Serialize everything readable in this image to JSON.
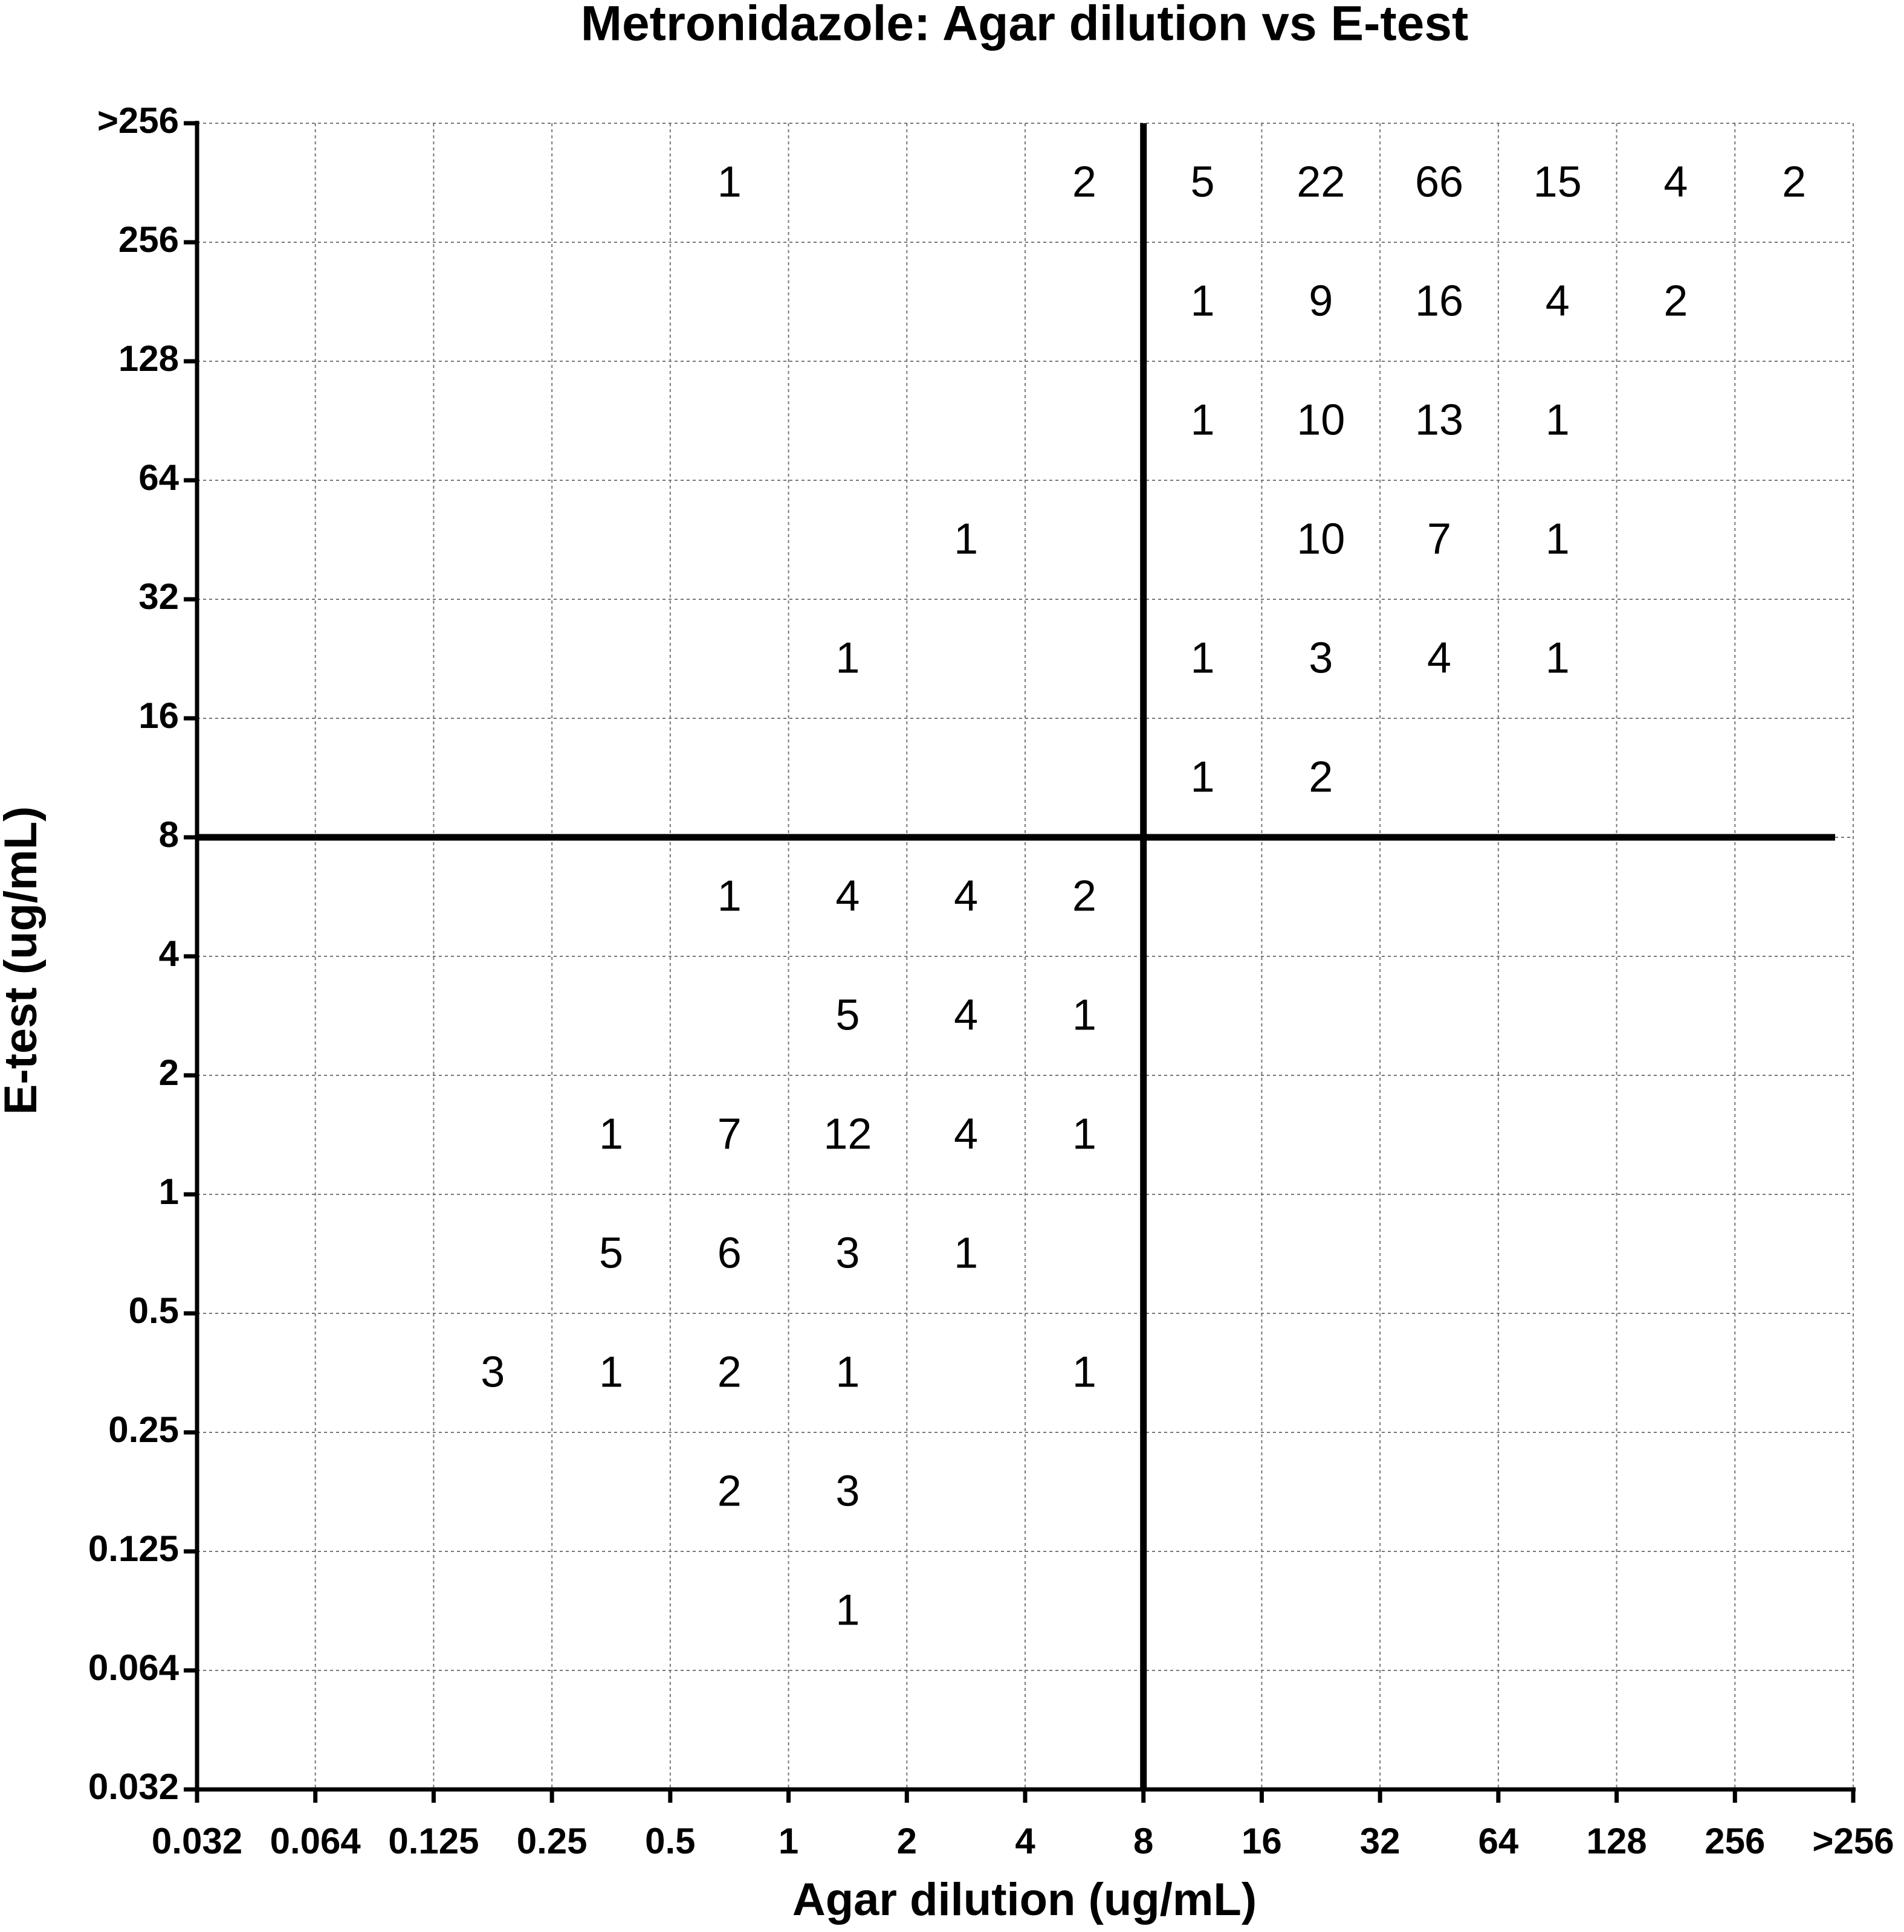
{
  "chart_data": {
    "type": "count-grid",
    "title": "Metronidazole: Agar dilution vs E-test",
    "x_label": "Agar dilution (ug/mL)",
    "y_label": "E-test (ug/mL)",
    "xticks": [
      0.032,
      0.064,
      0.125,
      0.25,
      0.5,
      1,
      2,
      4,
      8,
      16,
      32,
      64,
      128,
      256,
      {
        "value": 512,
        "label": ">256"
      }
    ],
    "yticks": [
      0.032,
      0.064,
      0.125,
      0.25,
      0.5,
      1,
      2,
      4,
      8,
      16,
      32,
      64,
      128,
      256,
      {
        "value": 512,
        "label": ">256"
      }
    ],
    "grid": true,
    "breakpoint": 8,
    "counts": [
      [
        null,
        null,
        null,
        null,
        null,
        null,
        null,
        null,
        null,
        null,
        null,
        null,
        null,
        null
      ],
      [
        null,
        null,
        null,
        null,
        null,
        1,
        null,
        null,
        null,
        null,
        null,
        null,
        null,
        null
      ],
      [
        null,
        null,
        null,
        null,
        2,
        3,
        null,
        null,
        null,
        null,
        null,
        null,
        null,
        null
      ],
      [
        null,
        null,
        3,
        1,
        2,
        1,
        null,
        1,
        null,
        null,
        null,
        null,
        null,
        null
      ],
      [
        null,
        null,
        null,
        5,
        6,
        3,
        1,
        null,
        null,
        null,
        null,
        null,
        null,
        null
      ],
      [
        null,
        null,
        null,
        1,
        7,
        12,
        4,
        1,
        null,
        null,
        null,
        null,
        null,
        null
      ],
      [
        null,
        null,
        null,
        null,
        null,
        5,
        4,
        1,
        null,
        null,
        null,
        null,
        null,
        null
      ],
      [
        null,
        null,
        null,
        null,
        1,
        4,
        4,
        2,
        null,
        null,
        null,
        null,
        null,
        null
      ],
      [
        null,
        null,
        null,
        null,
        null,
        null,
        null,
        null,
        1,
        2,
        null,
        null,
        null,
        null
      ],
      [
        null,
        null,
        null,
        null,
        null,
        1,
        null,
        null,
        1,
        3,
        4,
        1,
        null,
        null
      ],
      [
        null,
        null,
        null,
        null,
        null,
        null,
        1,
        null,
        null,
        10,
        7,
        1,
        null,
        null
      ],
      [
        null,
        null,
        null,
        null,
        null,
        null,
        null,
        null,
        1,
        10,
        13,
        1,
        null,
        null
      ],
      [
        null,
        null,
        null,
        null,
        null,
        null,
        null,
        null,
        1,
        9,
        16,
        4,
        2,
        null
      ],
      [
        null,
        null,
        null,
        null,
        1,
        null,
        null,
        2,
        5,
        22,
        66,
        15,
        4,
        2
      ]
    ]
  }
}
